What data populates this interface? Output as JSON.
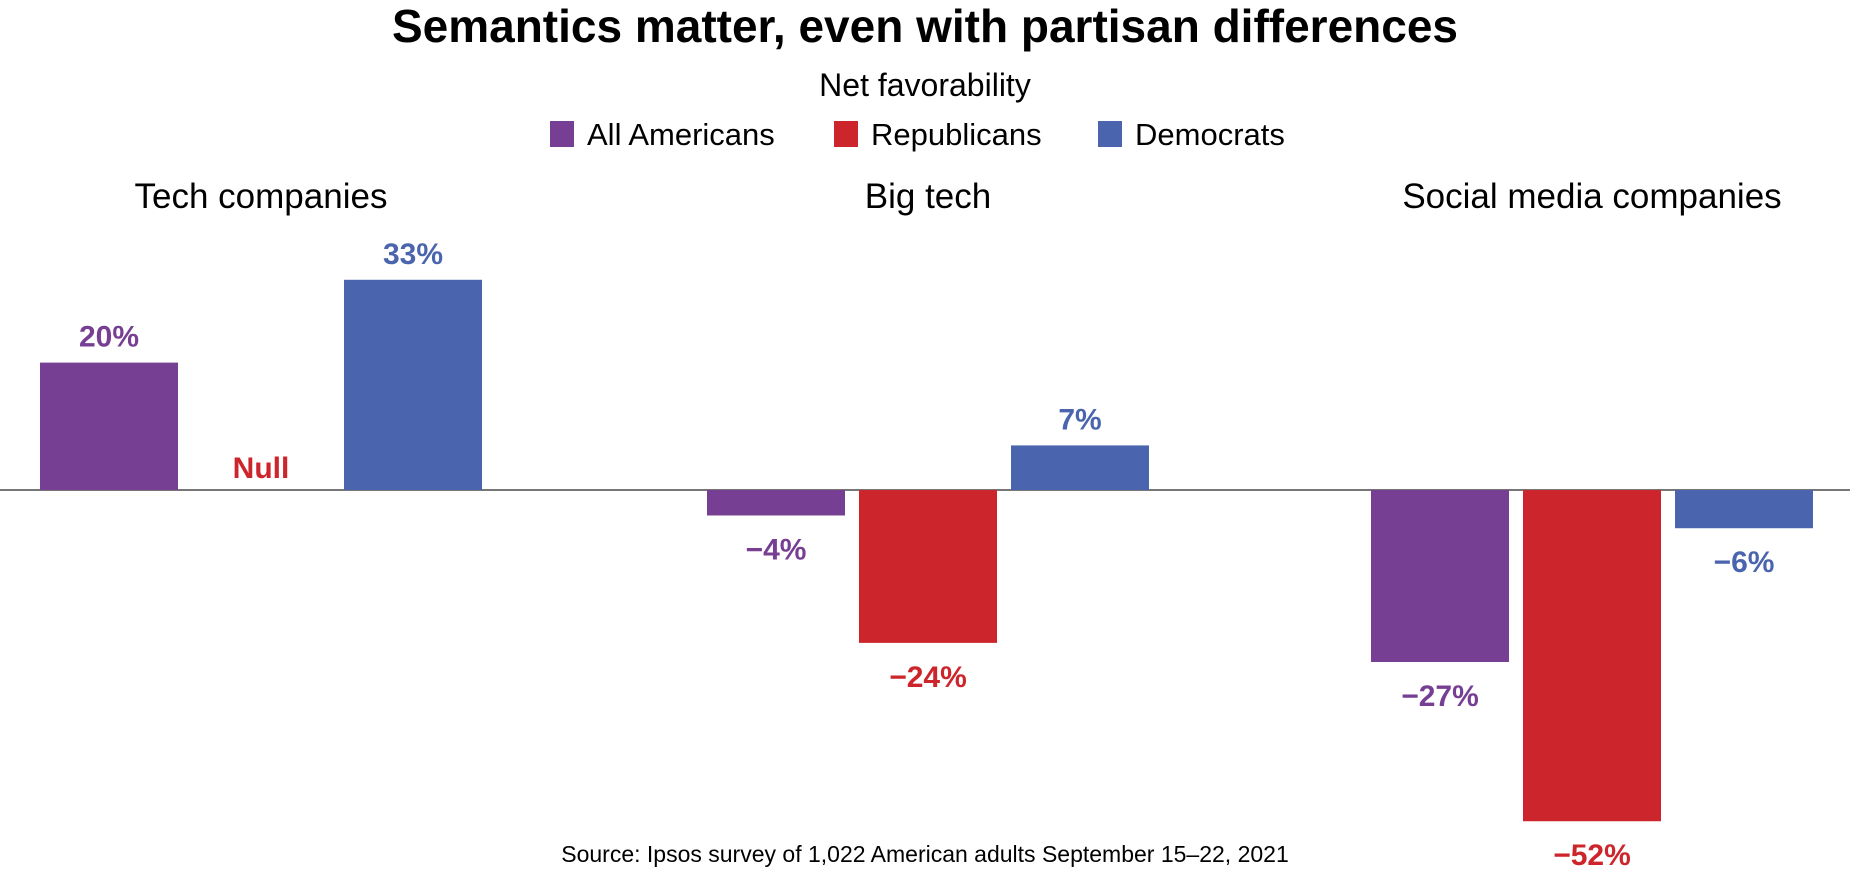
{
  "chart_data": {
    "type": "bar",
    "title": "Semantics matter, even with partisan differences",
    "subtitle": "Net favorability",
    "categories": [
      "Tech companies",
      "Big tech",
      "Social media companies"
    ],
    "series": [
      {
        "name": "All Americans",
        "color": "#773f93",
        "values": [
          20,
          -4,
          -27
        ],
        "labels": [
          "20%",
          "−4%",
          "−27%"
        ]
      },
      {
        "name": "Republicans",
        "color": "#cc252c",
        "values": [
          null,
          -24,
          -52
        ],
        "labels": [
          "Null",
          "−24%",
          "−52%"
        ]
      },
      {
        "name": "Democrats",
        "color": "#4a65ae",
        "values": [
          33,
          7,
          -6
        ],
        "labels": [
          "33%",
          "7%",
          "−6%"
        ]
      }
    ],
    "legend_position": "top-center",
    "grid": false,
    "source": "Source: Ipsos survey of 1,022 American adults September 15–22, 2021"
  }
}
